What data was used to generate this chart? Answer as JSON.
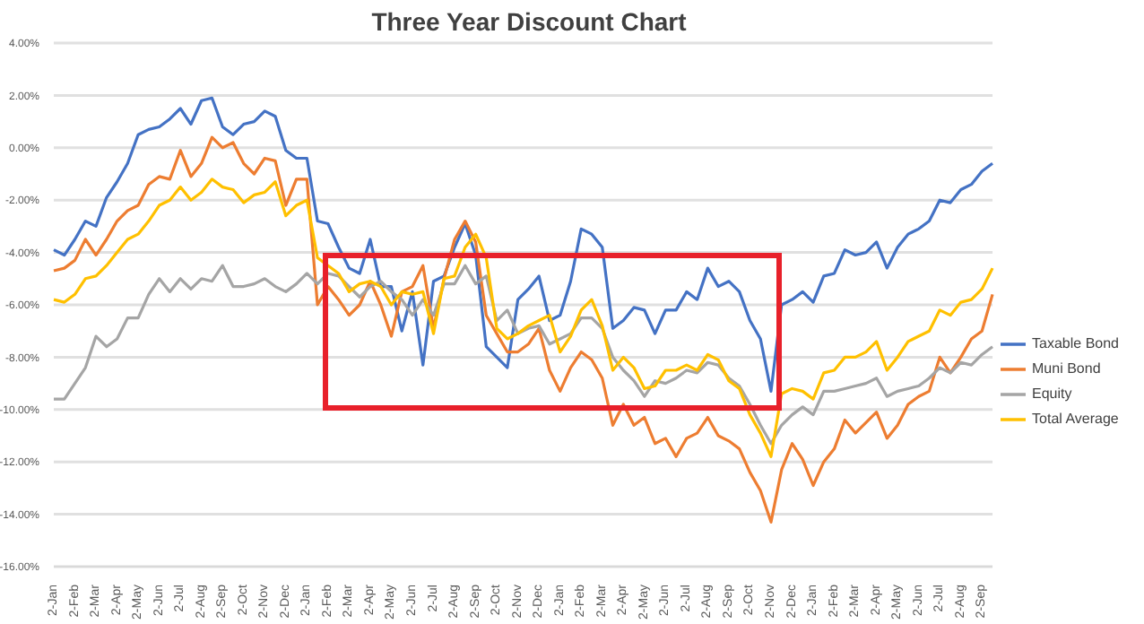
{
  "chart_data": {
    "type": "line",
    "title": "Three Year Discount Chart",
    "categories": [
      "2-Jan",
      null,
      "2-Feb",
      null,
      "2-Mar",
      null,
      "2-Apr",
      null,
      "2-May",
      null,
      "2-Jun",
      null,
      "2-Jul",
      null,
      "2-Aug",
      null,
      "2-Sep",
      null,
      "2-Oct",
      null,
      "2-Nov",
      null,
      "2-Dec",
      null,
      "2-Jan",
      null,
      "2-Feb",
      null,
      "2-Mar",
      null,
      "2-Apr",
      null,
      "2-May",
      null,
      "2-Jun",
      null,
      "2-Jul",
      null,
      "2-Aug",
      null,
      "2-Sep",
      null,
      "2-Oct",
      null,
      "2-Nov",
      null,
      "2-Dec",
      null,
      "2-Jan",
      null,
      "2-Feb",
      null,
      "2-Mar",
      null,
      "2-Apr",
      null,
      "2-May",
      null,
      "2-Jun",
      null,
      "2-Jul",
      null,
      "2-Aug",
      null,
      "2-Sep",
      null,
      "2-Oct",
      null,
      "2-Nov",
      null,
      "2-Dec",
      null,
      "2-Jan",
      null,
      "2-Feb",
      null,
      "2-Mar",
      null,
      "2-Apr",
      null,
      "2-May",
      null,
      "2-Jun",
      null,
      "2-Jul",
      null,
      "2-Aug",
      null,
      "2-Sep",
      null
    ],
    "series": [
      {
        "name": "Taxable Bond",
        "color": "#4472c4",
        "values": [
          -3.9,
          -4.1,
          -3.5,
          -2.8,
          -3.0,
          -1.9,
          -1.3,
          -0.6,
          0.5,
          0.7,
          0.8,
          1.1,
          1.5,
          0.9,
          1.8,
          1.9,
          0.8,
          0.5,
          0.9,
          1.0,
          1.4,
          1.2,
          -0.1,
          -0.4,
          -0.4,
          -2.8,
          -2.9,
          -3.8,
          -4.6,
          -4.8,
          -3.5,
          -5.3,
          -5.3,
          -7.0,
          -5.5,
          -8.3,
          -5.1,
          -4.9,
          -3.8,
          -2.9,
          -4.1,
          -7.6,
          -8.0,
          -8.4,
          -5.8,
          -5.4,
          -4.9,
          -6.6,
          -6.4,
          -5.1,
          -3.1,
          -3.3,
          -3.8,
          -6.9,
          -6.6,
          -6.1,
          -6.2,
          -7.1,
          -6.2,
          -6.2,
          -5.5,
          -5.8,
          -4.6,
          -5.3,
          -5.1,
          -5.5,
          -6.6,
          -7.3,
          -9.3,
          -6.0,
          -5.8,
          -5.5,
          -5.9,
          -4.9,
          -4.8,
          -3.9,
          -4.1,
          -4.0,
          -3.6,
          -4.6,
          -3.8,
          -3.3,
          -3.1,
          -2.8,
          -2.0,
          -2.1,
          -1.6,
          -1.4,
          -0.9,
          -0.6
        ]
      },
      {
        "name": "Muni Bond",
        "color": "#ed7d31",
        "values": [
          -4.7,
          -4.6,
          -4.3,
          -3.5,
          -4.1,
          -3.5,
          -2.8,
          -2.4,
          -2.2,
          -1.4,
          -1.1,
          -1.2,
          -0.1,
          -1.1,
          -0.6,
          0.4,
          0.0,
          0.2,
          -0.6,
          -1.0,
          -0.4,
          -0.5,
          -2.2,
          -1.2,
          -1.2,
          -6.0,
          -5.3,
          -5.8,
          -6.4,
          -6.0,
          -5.1,
          -6.0,
          -7.2,
          -5.5,
          -5.3,
          -4.5,
          -6.9,
          -5.0,
          -3.5,
          -2.8,
          -3.6,
          -6.4,
          -7.1,
          -7.8,
          -7.8,
          -7.5,
          -6.9,
          -8.5,
          -9.3,
          -8.4,
          -7.8,
          -8.1,
          -8.8,
          -10.6,
          -9.8,
          -10.6,
          -10.3,
          -11.3,
          -11.1,
          -11.8,
          -11.1,
          -10.9,
          -10.3,
          -11.0,
          -11.2,
          -11.5,
          -12.4,
          -13.1,
          -14.3,
          -12.3,
          -11.3,
          -11.9,
          -12.9,
          -12.0,
          -11.5,
          -10.4,
          -10.9,
          -10.5,
          -10.1,
          -11.1,
          -10.6,
          -9.8,
          -9.5,
          -9.3,
          -8.0,
          -8.6,
          -8.0,
          -7.3,
          -7.0,
          -5.6
        ]
      },
      {
        "name": "Equity",
        "color": "#a5a5a5",
        "values": [
          -9.6,
          -9.6,
          -9.0,
          -8.4,
          -7.2,
          -7.6,
          -7.3,
          -6.5,
          -6.5,
          -5.6,
          -5.0,
          -5.5,
          -5.0,
          -5.4,
          -5.0,
          -5.1,
          -4.5,
          -5.3,
          -5.3,
          -5.2,
          -5.0,
          -5.3,
          -5.5,
          -5.2,
          -4.8,
          -5.2,
          -4.8,
          -4.9,
          -5.3,
          -5.7,
          -5.3,
          -5.1,
          -5.5,
          -5.8,
          -6.4,
          -5.8,
          -6.4,
          -5.2,
          -5.2,
          -4.5,
          -5.2,
          -4.9,
          -6.6,
          -6.2,
          -7.1,
          -6.9,
          -6.8,
          -7.5,
          -7.3,
          -7.1,
          -6.5,
          -6.5,
          -6.9,
          -8.0,
          -8.5,
          -8.9,
          -9.5,
          -8.9,
          -9.0,
          -8.8,
          -8.5,
          -8.6,
          -8.2,
          -8.3,
          -8.8,
          -9.1,
          -9.8,
          -10.6,
          -11.3,
          -10.6,
          -10.2,
          -9.9,
          -10.2,
          -9.3,
          -9.3,
          -9.2,
          -9.1,
          -9.0,
          -8.8,
          -9.5,
          -9.3,
          -9.2,
          -9.1,
          -8.8,
          -8.4,
          -8.6,
          -8.2,
          -8.3,
          -7.9,
          -7.6
        ]
      },
      {
        "name": "Total Average",
        "color": "#ffc000",
        "values": [
          -5.8,
          -5.9,
          -5.6,
          -5.0,
          -4.9,
          -4.5,
          -4.0,
          -3.5,
          -3.3,
          -2.8,
          -2.2,
          -2.0,
          -1.5,
          -2.0,
          -1.7,
          -1.2,
          -1.5,
          -1.6,
          -2.1,
          -1.8,
          -1.7,
          -1.3,
          -2.6,
          -2.2,
          -2.0,
          -4.2,
          -4.5,
          -4.8,
          -5.5,
          -5.2,
          -5.1,
          -5.3,
          -6.0,
          -5.5,
          -5.6,
          -5.5,
          -7.1,
          -5.0,
          -4.9,
          -3.8,
          -3.3,
          -4.2,
          -6.9,
          -7.3,
          -7.1,
          -6.8,
          -6.6,
          -6.4,
          -7.8,
          -7.2,
          -6.2,
          -5.8,
          -6.8,
          -8.5,
          -8.0,
          -8.4,
          -9.2,
          -9.1,
          -8.5,
          -8.5,
          -8.3,
          -8.5,
          -7.9,
          -8.1,
          -8.9,
          -9.2,
          -10.2,
          -10.9,
          -11.8,
          -9.4,
          -9.2,
          -9.3,
          -9.6,
          -8.6,
          -8.5,
          -8.0,
          -8.0,
          -7.8,
          -7.4,
          -8.5,
          -8.0,
          -7.4,
          -7.2,
          -7.0,
          -6.2,
          -6.4,
          -5.9,
          -5.8,
          -5.4,
          -4.6
        ]
      }
    ],
    "ylim": [
      -16,
      4
    ],
    "yticks": [
      {
        "value": 4,
        "label": "4.00%"
      },
      {
        "value": 2,
        "label": "2.00%"
      },
      {
        "value": 0,
        "label": "0.00%"
      },
      {
        "value": -2,
        "label": "-2.00%"
      },
      {
        "value": -4,
        "label": "-4.00%"
      },
      {
        "value": -6,
        "label": "-6.00%"
      },
      {
        "value": -8,
        "label": "-8.00%"
      },
      {
        "value": -10,
        "label": "-10.00%"
      },
      {
        "value": -12,
        "label": "-12.00%"
      },
      {
        "value": -14,
        "label": "-14.00%"
      },
      {
        "value": -16,
        "label": "-16.00%"
      }
    ],
    "grid": "y",
    "legend": "right",
    "marker": "none",
    "line_style": "solid"
  }
}
